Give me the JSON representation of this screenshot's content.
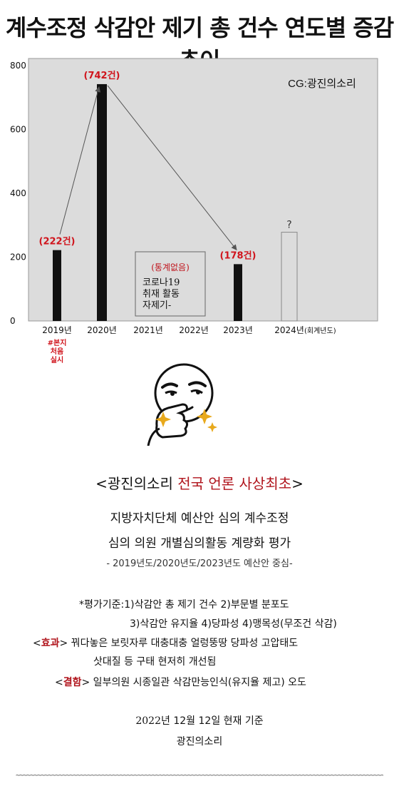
{
  "title": "계수조정 삭감안 제기 총 건수 연도별  증감 추이",
  "chart_data": {
    "type": "bar",
    "credit": "CG:광진의소리",
    "ylim": [
      0,
      800
    ],
    "yticks": [
      "800",
      "600",
      "400",
      "200",
      "0"
    ],
    "categories": [
      "2019년",
      "2020년",
      "2021년",
      "2022년",
      "2023년",
      "2024년"
    ],
    "x_note": "(회계년도)",
    "values": [
      222,
      742,
      null,
      null,
      178,
      null
    ],
    "data_labels": [
      "(222건)",
      "(742건)",
      "",
      "",
      "(178건)",
      ""
    ],
    "bar_colors": [
      "#111111",
      "#111111",
      "",
      "",
      "#111111",
      ""
    ],
    "placeholder_2024": {
      "value": 278,
      "label": "?"
    },
    "annotation_2019": [
      "#본지",
      "처음",
      "실시"
    ],
    "no_data_box": {
      "header": "(통계없음)",
      "lines": [
        "코로나19",
        "취재 활동",
        "자제기-"
      ]
    },
    "plot_background": "#dcdcdc"
  },
  "text": {
    "heading_open": "<광진의소리 ",
    "heading_red": "전국 언론 사상최초",
    "heading_close": ">",
    "line1": "지방자치단체 예산안 심의 계수조정",
    "line2": "심의 의원 개별심의활동 계량화 평가",
    "sub": "- 2019년도/2020년도/2023년도 예산안 중심-",
    "criteria1": "*평가기준:1)삭감안 총 제기 건수 2)부문별 분포도",
    "criteria2": "3)삭감안 유지율 4)당파성 4)맹목성(무조건 삭감)",
    "effect_tag_open": "<",
    "effect_tag": "효과",
    "effect_tag_close": ">",
    "effect_text": " 꿔다놓은 보릿자루 대충대충 얼렁뚱땅 당파성 고압태도",
    "effect_text2": "삿대질 등 구태 현저히 개선됨",
    "flaw_tag_open": "<",
    "flaw_tag": "결함",
    "flaw_tag_close": ">",
    "flaw_text": " 일부의원 시종일관 삭감만능인식(유지율 제고) 오도",
    "date_num1": "2022",
    "date_txt1": "년 ",
    "date_num2": "12",
    "date_txt2": "월 ",
    "date_num3": "12",
    "date_txt3": "일 현재 기준",
    "org": "광진의소리"
  }
}
